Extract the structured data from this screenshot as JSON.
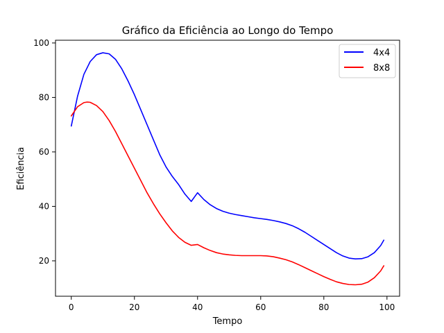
{
  "chart_data": {
    "type": "line",
    "title": "Gráfico da Eficiência ao Longo do Tempo",
    "xlabel": "Tempo",
    "ylabel": "Eficiência",
    "xlim": [
      -5,
      104
    ],
    "ylim": [
      7,
      101
    ],
    "x_ticks": [
      0,
      20,
      40,
      60,
      80,
      100
    ],
    "y_ticks": [
      20,
      40,
      60,
      80,
      100
    ],
    "grid": false,
    "legend_position": "top-right",
    "series": [
      {
        "name": "4x4",
        "color": "#0000ff",
        "points": [
          [
            0,
            69.5
          ],
          [
            2,
            80.5
          ],
          [
            4,
            88.5
          ],
          [
            6,
            93.2
          ],
          [
            8,
            95.7
          ],
          [
            10,
            96.4
          ],
          [
            12,
            96.0
          ],
          [
            14,
            94.0
          ],
          [
            16,
            90.5
          ],
          [
            18,
            86.0
          ],
          [
            20,
            81.0
          ],
          [
            22,
            75.5
          ],
          [
            24,
            70.0
          ],
          [
            26,
            64.5
          ],
          [
            28,
            59.0
          ],
          [
            30,
            54.5
          ],
          [
            32,
            51.0
          ],
          [
            34,
            48.0
          ],
          [
            36,
            44.5
          ],
          [
            38,
            41.8
          ],
          [
            40,
            45.0
          ],
          [
            42,
            42.5
          ],
          [
            44,
            40.6
          ],
          [
            46,
            39.2
          ],
          [
            48,
            38.2
          ],
          [
            50,
            37.5
          ],
          [
            52,
            37.0
          ],
          [
            54,
            36.6
          ],
          [
            56,
            36.2
          ],
          [
            58,
            35.8
          ],
          [
            60,
            35.5
          ],
          [
            62,
            35.2
          ],
          [
            64,
            34.8
          ],
          [
            66,
            34.3
          ],
          [
            68,
            33.7
          ],
          [
            70,
            32.9
          ],
          [
            72,
            31.8
          ],
          [
            74,
            30.5
          ],
          [
            76,
            29.0
          ],
          [
            78,
            27.5
          ],
          [
            80,
            26.0
          ],
          [
            82,
            24.5
          ],
          [
            84,
            23.0
          ],
          [
            86,
            21.8
          ],
          [
            88,
            21.0
          ],
          [
            90,
            20.7
          ],
          [
            92,
            20.8
          ],
          [
            94,
            21.5
          ],
          [
            96,
            23.0
          ],
          [
            98,
            25.6
          ],
          [
            99,
            27.6
          ]
        ]
      },
      {
        "name": "8x8",
        "color": "#ff0000",
        "points": [
          [
            0,
            73.2
          ],
          [
            2,
            76.6
          ],
          [
            4,
            78.1
          ],
          [
            5,
            78.3
          ],
          [
            6,
            78.2
          ],
          [
            8,
            77.0
          ],
          [
            10,
            74.8
          ],
          [
            12,
            71.5
          ],
          [
            14,
            67.5
          ],
          [
            16,
            63.0
          ],
          [
            18,
            58.5
          ],
          [
            20,
            54.0
          ],
          [
            22,
            49.5
          ],
          [
            24,
            45.0
          ],
          [
            26,
            41.0
          ],
          [
            28,
            37.3
          ],
          [
            30,
            34.0
          ],
          [
            32,
            31.0
          ],
          [
            34,
            28.6
          ],
          [
            36,
            26.8
          ],
          [
            38,
            25.7
          ],
          [
            40,
            26.0
          ],
          [
            42,
            24.8
          ],
          [
            44,
            23.8
          ],
          [
            46,
            23.0
          ],
          [
            48,
            22.5
          ],
          [
            50,
            22.2
          ],
          [
            52,
            22.0
          ],
          [
            54,
            21.9
          ],
          [
            56,
            21.9
          ],
          [
            58,
            21.9
          ],
          [
            60,
            21.9
          ],
          [
            62,
            21.8
          ],
          [
            64,
            21.5
          ],
          [
            66,
            21.0
          ],
          [
            68,
            20.4
          ],
          [
            70,
            19.6
          ],
          [
            72,
            18.6
          ],
          [
            74,
            17.5
          ],
          [
            76,
            16.4
          ],
          [
            78,
            15.3
          ],
          [
            80,
            14.2
          ],
          [
            82,
            13.2
          ],
          [
            84,
            12.3
          ],
          [
            86,
            11.7
          ],
          [
            88,
            11.3
          ],
          [
            90,
            11.2
          ],
          [
            92,
            11.4
          ],
          [
            94,
            12.2
          ],
          [
            96,
            13.8
          ],
          [
            98,
            16.3
          ],
          [
            99,
            18.2
          ]
        ]
      }
    ]
  }
}
